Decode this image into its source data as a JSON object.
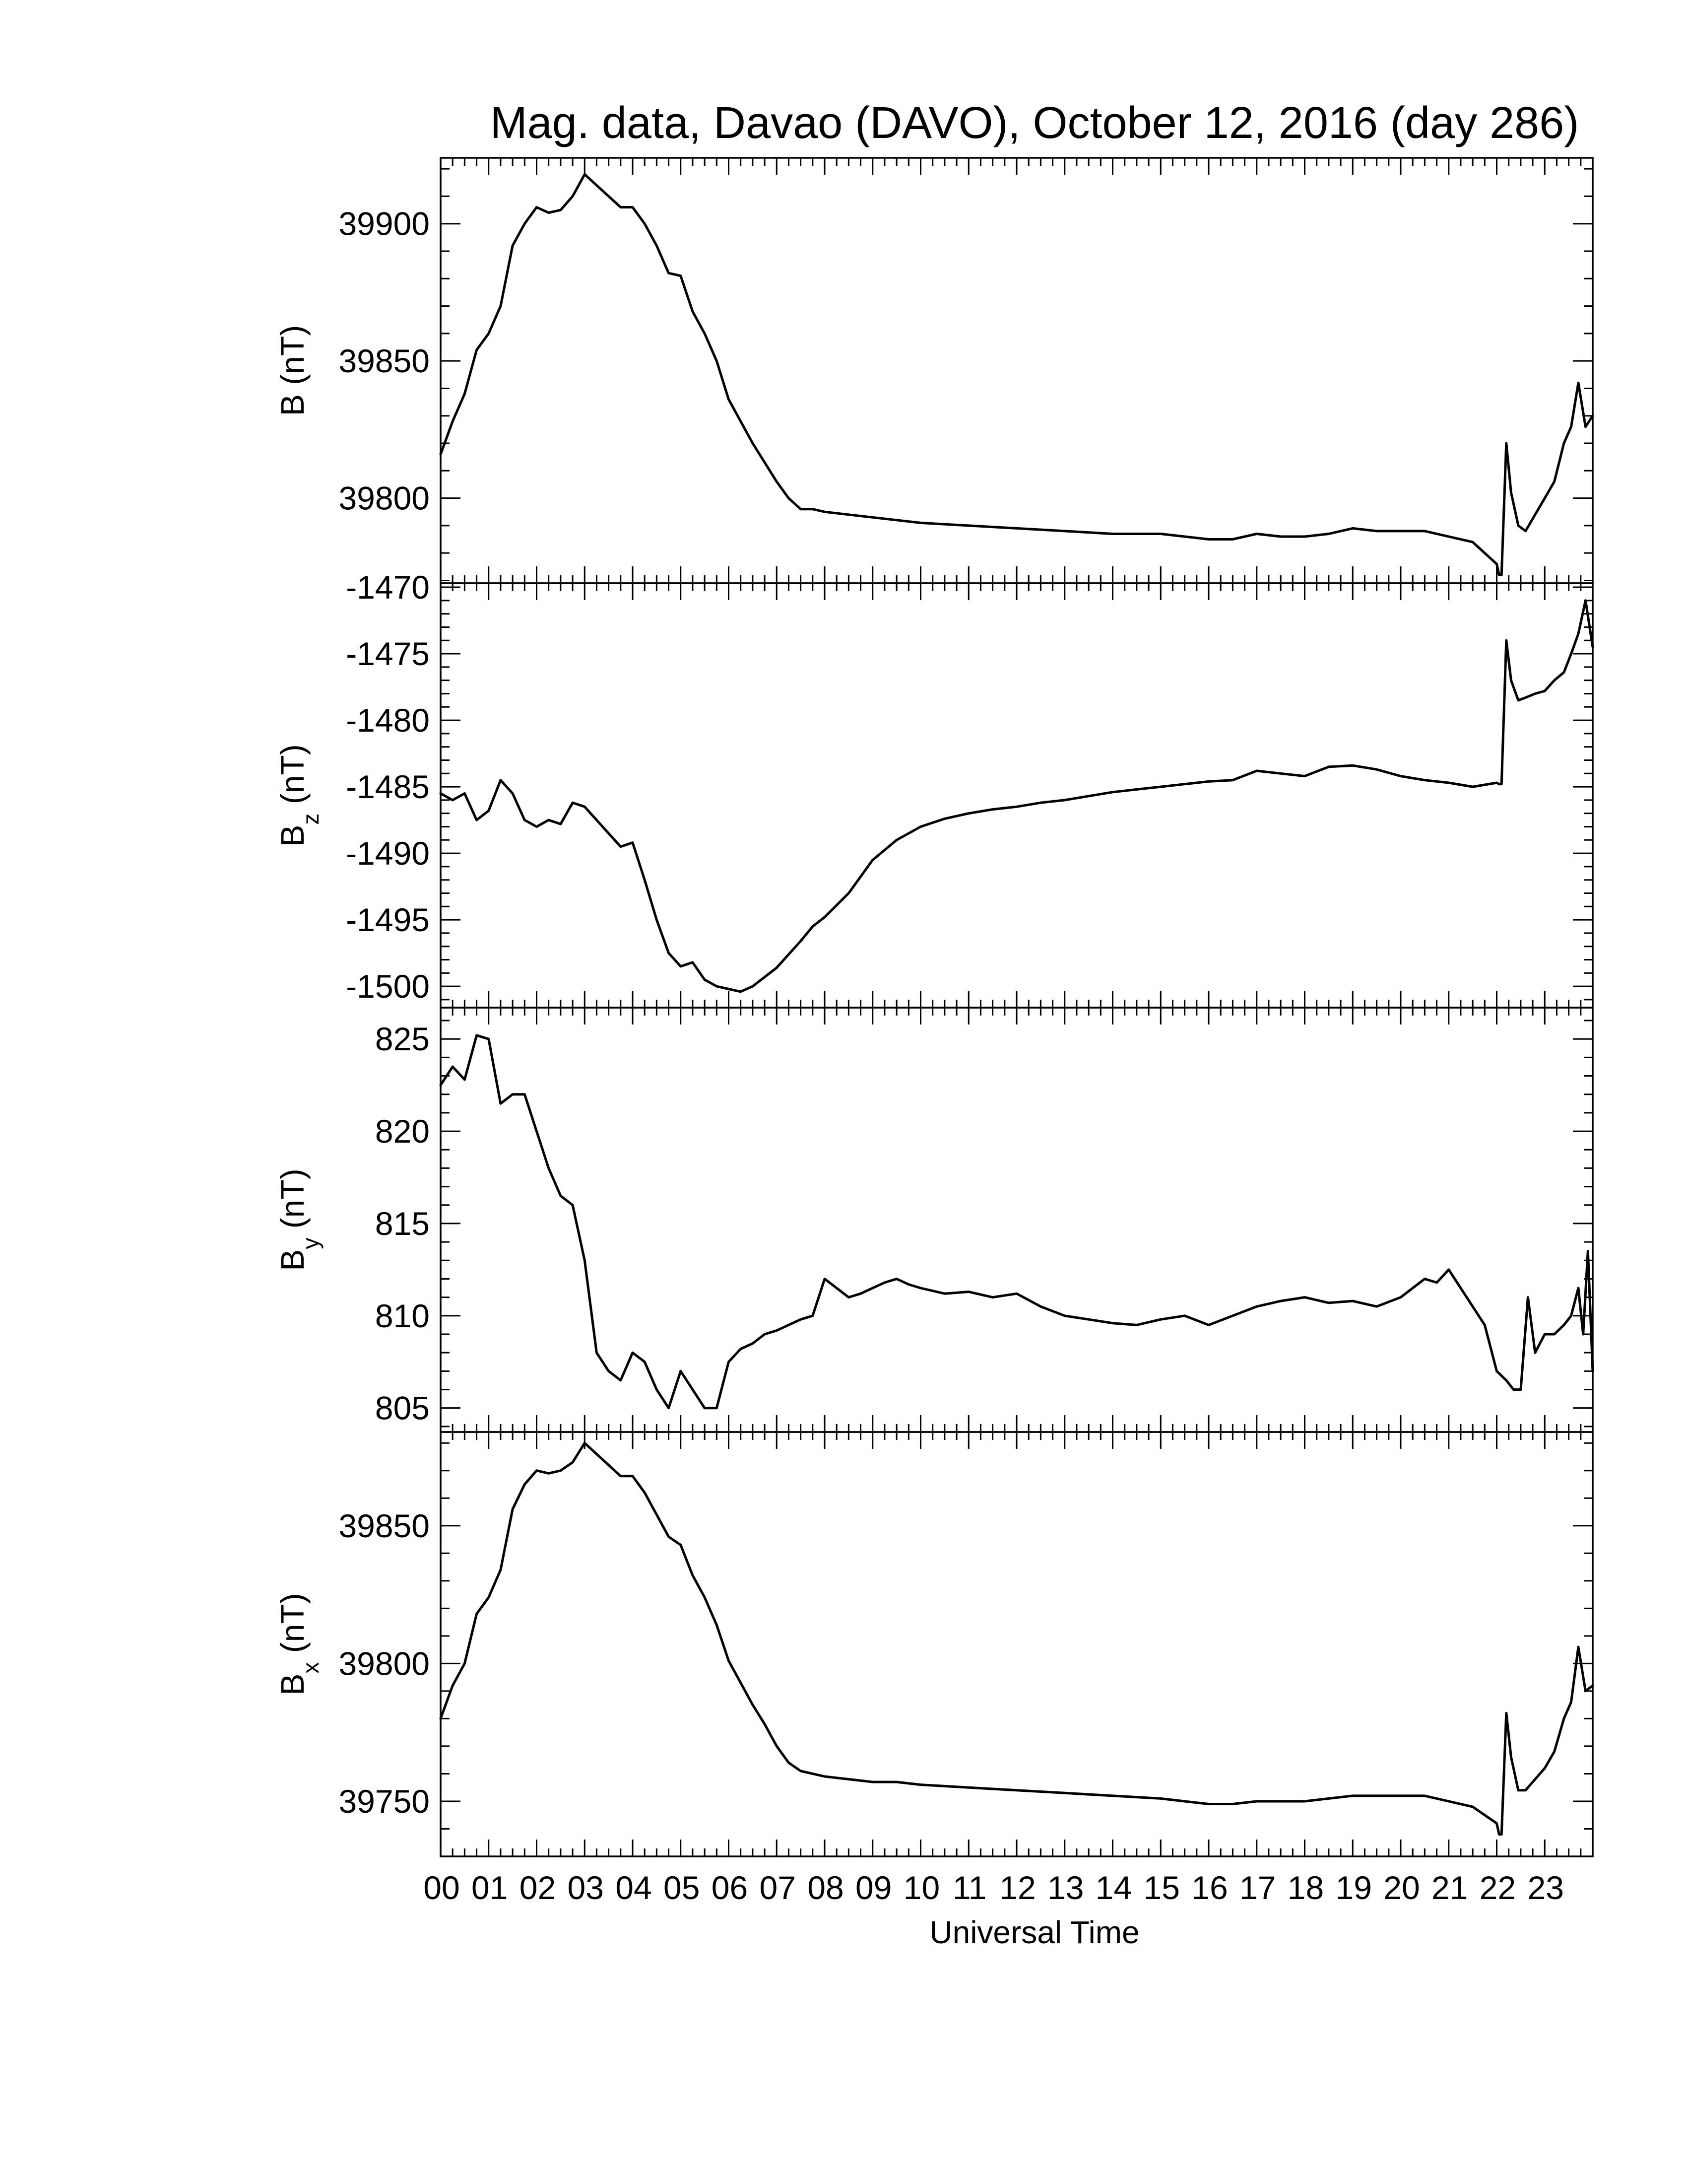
{
  "chart_data": {
    "type": "line",
    "title": "Mag. data, Davao (DAVO), October 12, 2016 (day 286)",
    "xlabel": "Universal Time",
    "x_unit": "hours (UT)",
    "xlim": [
      0,
      24
    ],
    "x_tick_labels": [
      "00",
      "01",
      "02",
      "03",
      "04",
      "05",
      "06",
      "07",
      "08",
      "09",
      "10",
      "11",
      "12",
      "13",
      "14",
      "15",
      "16",
      "17",
      "18",
      "19",
      "20",
      "21",
      "22",
      "23"
    ],
    "panels": [
      {
        "ylabel_main": "B",
        "ylabel_sub": "",
        "ylabel_unit": " (nT)",
        "ylim": [
          39769,
          39924
        ],
        "y_ticks": [
          39800,
          39850,
          39900
        ],
        "y_tick_labels": [
          "39800",
          "39850",
          "39900"
        ],
        "x": [
          0,
          0.25,
          0.5,
          0.75,
          1,
          1.25,
          1.5,
          1.75,
          2,
          2.25,
          2.5,
          2.75,
          3,
          3.25,
          3.5,
          3.75,
          4,
          4.25,
          4.5,
          4.75,
          5,
          5.25,
          5.5,
          5.75,
          6,
          6.25,
          6.5,
          6.75,
          7,
          7.25,
          7.5,
          7.75,
          8,
          8.5,
          9,
          9.5,
          10,
          11,
          12,
          13,
          14,
          15,
          15.5,
          16,
          16.5,
          17,
          17.5,
          18,
          18.5,
          19,
          19.5,
          20,
          20.5,
          21,
          21.5,
          22,
          22.05,
          22.1,
          22.2,
          22.3,
          22.45,
          22.6,
          22.8,
          23,
          23.2,
          23.4,
          23.55,
          23.7,
          23.85,
          24
        ],
        "y": [
          39816,
          39828,
          39838,
          39854,
          39860,
          39870,
          39892,
          39900,
          39906,
          39904,
          39905,
          39910,
          39918,
          39914,
          39910,
          39906,
          39906,
          39900,
          39892,
          39882,
          39881,
          39868,
          39860,
          39850,
          39836,
          39828,
          39820,
          39813,
          39806,
          39800,
          39796,
          39796,
          39795,
          39794,
          39793,
          39792,
          39791,
          39790,
          39789,
          39788,
          39787,
          39787,
          39786,
          39785,
          39785,
          39787,
          39786,
          39786,
          39787,
          39789,
          39788,
          39788,
          39788,
          39786,
          39784,
          39776,
          39772,
          39772,
          39820,
          39802,
          39790,
          39788,
          39794,
          39800,
          39806,
          39820,
          39826,
          39842,
          39826,
          39830
        ]
      },
      {
        "ylabel_main": "B",
        "ylabel_sub": "z",
        "ylabel_unit": " (nT)",
        "ylim": [
          -1501.6,
          -1469.7
        ],
        "y_ticks": [
          -1500,
          -1495,
          -1490,
          -1485,
          -1480,
          -1475,
          -1470
        ],
        "y_tick_labels": [
          "-1500",
          "-1495",
          "-1490",
          "-1485",
          "-1480",
          "-1475",
          "-1470"
        ],
        "x": [
          0,
          0.25,
          0.5,
          0.75,
          1,
          1.25,
          1.5,
          1.75,
          2,
          2.25,
          2.5,
          2.75,
          3,
          3.25,
          3.5,
          3.75,
          4,
          4.25,
          4.5,
          4.75,
          5,
          5.25,
          5.5,
          5.75,
          6,
          6.25,
          6.5,
          6.75,
          7,
          7.25,
          7.5,
          7.75,
          8,
          8.5,
          9,
          9.5,
          10,
          10.5,
          11,
          11.5,
          12,
          12.5,
          13,
          13.5,
          14,
          14.5,
          15,
          15.5,
          16,
          16.5,
          17,
          17.5,
          18,
          18.5,
          19,
          19.5,
          20,
          20.5,
          21,
          21.5,
          22,
          22.05,
          22.1,
          22.2,
          22.3,
          22.45,
          22.6,
          22.8,
          23,
          23.2,
          23.4,
          23.55,
          23.7,
          23.85,
          24
        ],
        "y": [
          -1485.5,
          -1486,
          -1485.5,
          -1487.5,
          -1486.8,
          -1484.5,
          -1485.5,
          -1487.5,
          -1488,
          -1487.5,
          -1487.8,
          -1486.2,
          -1486.5,
          -1487.5,
          -1488.5,
          -1489.5,
          -1489.2,
          -1492,
          -1495,
          -1497.5,
          -1498.5,
          -1498.2,
          -1499.5,
          -1500,
          -1500.2,
          -1500.4,
          -1500,
          -1499.3,
          -1498.6,
          -1497.6,
          -1496.6,
          -1495.5,
          -1494.8,
          -1493,
          -1490.5,
          -1489,
          -1488,
          -1487.4,
          -1487,
          -1486.7,
          -1486.5,
          -1486.2,
          -1486,
          -1485.7,
          -1485.4,
          -1485.2,
          -1485,
          -1484.8,
          -1484.6,
          -1484.5,
          -1483.8,
          -1484,
          -1484.2,
          -1483.5,
          -1483.4,
          -1483.7,
          -1484.2,
          -1484.5,
          -1484.7,
          -1485,
          -1484.7,
          -1484.8,
          -1484.8,
          -1474,
          -1477,
          -1478.5,
          -1478.3,
          -1478,
          -1477.8,
          -1477,
          -1476.4,
          -1475,
          -1473.5,
          -1471,
          -1474.5
        ]
      },
      {
        "ylabel_main": "B",
        "ylabel_sub": "y",
        "ylabel_unit": " (nT)",
        "ylim": [
          803.7,
          826.7
        ],
        "y_ticks": [
          805,
          810,
          815,
          820,
          825
        ],
        "y_tick_labels": [
          "805",
          "810",
          "815",
          "820",
          "825"
        ],
        "x": [
          0,
          0.25,
          0.5,
          0.75,
          1,
          1.25,
          1.5,
          1.75,
          2,
          2.25,
          2.5,
          2.75,
          3,
          3.25,
          3.5,
          3.75,
          4,
          4.25,
          4.5,
          4.75,
          5,
          5.25,
          5.5,
          5.75,
          6,
          6.25,
          6.5,
          6.75,
          7,
          7.25,
          7.5,
          7.75,
          8,
          8.25,
          8.5,
          8.75,
          9,
          9.25,
          9.5,
          9.75,
          10,
          10.5,
          11,
          11.5,
          12,
          12.5,
          13,
          13.5,
          14,
          14.5,
          15,
          15.5,
          16,
          16.5,
          17,
          17.5,
          18,
          18.5,
          19,
          19.5,
          20,
          20.25,
          20.5,
          20.75,
          21,
          21.25,
          21.5,
          21.75,
          22,
          22.2,
          22.35,
          22.5,
          22.65,
          22.8,
          23,
          23.2,
          23.4,
          23.55,
          23.7,
          23.8,
          23.9,
          24
        ],
        "y": [
          822.5,
          823.5,
          822.8,
          825.2,
          825,
          821.5,
          822,
          822,
          820,
          818,
          816.5,
          816,
          813,
          808,
          807,
          806.5,
          808,
          807.5,
          806,
          805,
          807,
          806,
          805,
          805,
          807.5,
          808.2,
          808.5,
          809,
          809.2,
          809.5,
          809.8,
          810,
          812,
          811.5,
          811,
          811.2,
          811.5,
          811.8,
          812,
          811.7,
          811.5,
          811.2,
          811.3,
          811,
          811.2,
          810.5,
          810,
          809.8,
          809.6,
          809.5,
          809.8,
          810,
          809.5,
          810,
          810.5,
          810.8,
          811,
          810.7,
          810.8,
          810.5,
          811,
          811.5,
          812,
          811.8,
          812.5,
          811.5,
          810.5,
          809.5,
          807,
          806.5,
          806,
          806,
          811,
          808,
          809,
          809,
          809.5,
          810,
          811.5,
          809,
          813.5,
          807
        ]
      },
      {
        "ylabel_main": "B",
        "ylabel_sub": "x",
        "ylabel_unit": " (nT)",
        "ylim": [
          39730,
          39884
        ],
        "y_ticks": [
          39750,
          39800,
          39850
        ],
        "y_tick_labels": [
          "39750",
          "39800",
          "39850"
        ],
        "x": [
          0,
          0.25,
          0.5,
          0.75,
          1,
          1.25,
          1.5,
          1.75,
          2,
          2.25,
          2.5,
          2.75,
          3,
          3.25,
          3.5,
          3.75,
          4,
          4.25,
          4.5,
          4.75,
          5,
          5.25,
          5.5,
          5.75,
          6,
          6.25,
          6.5,
          6.75,
          7,
          7.25,
          7.5,
          7.75,
          8,
          8.5,
          9,
          9.5,
          10,
          11,
          12,
          13,
          14,
          15,
          15.5,
          16,
          16.5,
          17,
          17.5,
          18,
          18.5,
          19,
          19.5,
          20,
          20.5,
          21,
          21.5,
          22,
          22.05,
          22.1,
          22.2,
          22.3,
          22.45,
          22.6,
          22.8,
          23,
          23.2,
          23.4,
          23.55,
          23.7,
          23.85,
          24
        ],
        "y": [
          39780,
          39792,
          39800,
          39818,
          39824,
          39834,
          39856,
          39865,
          39870,
          39869,
          39870,
          39873,
          39880,
          39876,
          39872,
          39868,
          39868,
          39862,
          39854,
          39846,
          39843,
          39832,
          39824,
          39814,
          39801,
          39793,
          39785,
          39778,
          39770,
          39764,
          39761,
          39760,
          39759,
          39758,
          39757,
          39757,
          39756,
          39755,
          39754,
          39753,
          39752,
          39751,
          39750,
          39749,
          39749,
          39750,
          39750,
          39750,
          39751,
          39752,
          39752,
          39752,
          39752,
          39750,
          39748,
          39742,
          39738,
          39738,
          39782,
          39766,
          39754,
          39754,
          39758,
          39762,
          39768,
          39780,
          39786,
          39806,
          39790,
          39792
        ]
      }
    ]
  }
}
